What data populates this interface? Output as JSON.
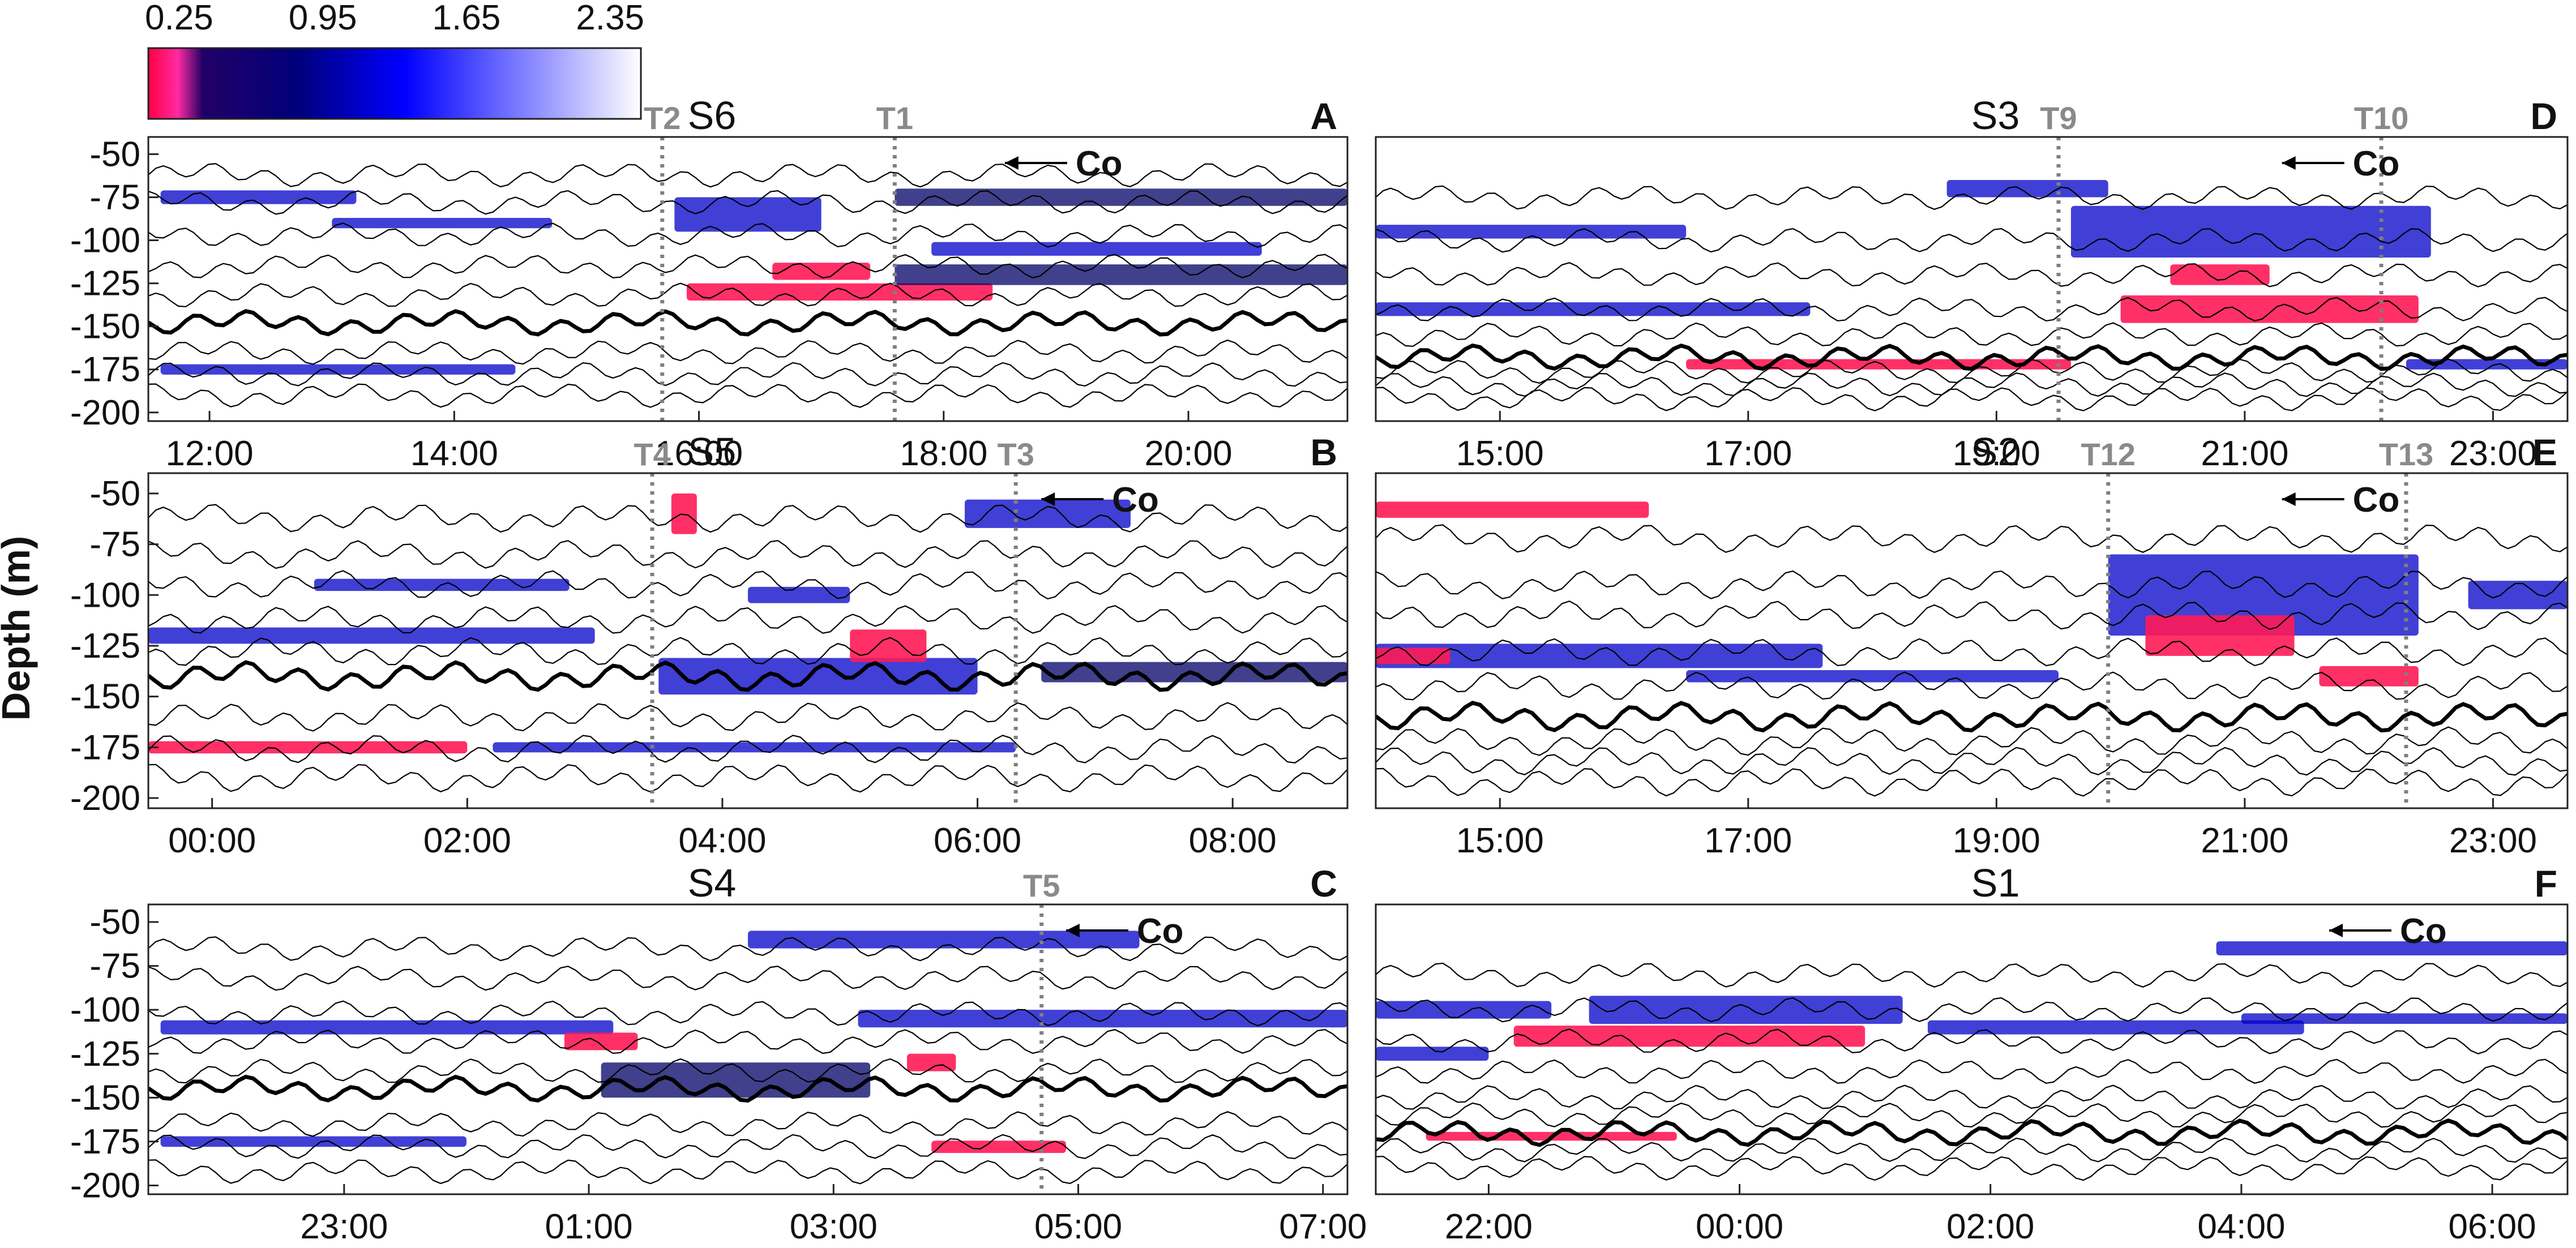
{
  "colorbar": {
    "ticks": [
      "0.25",
      "0.95",
      "1.65",
      "2.35"
    ],
    "values": [
      0.25,
      0.95,
      1.65,
      2.35
    ],
    "range": [
      0.1,
      2.5
    ],
    "colors": [
      "#ff0044",
      "#ff2aa0",
      "#1a0060",
      "#00007a",
      "#0000ff",
      "#ffffff"
    ]
  },
  "y_label": "Depth (m)",
  "colors": {
    "frame": "#222222",
    "transect_line": "#7f7f7f",
    "low": "#ff1a55",
    "mid": "#0000c8",
    "dark": "#000066"
  },
  "chart_data": [
    {
      "type": "heatmap",
      "panel": "A",
      "station": "S6",
      "ylim": [
        -205,
        -40
      ],
      "yticks": [
        "-50",
        "-75",
        "-100",
        "-125",
        "-150",
        "-175",
        "-200"
      ],
      "xlim_hours": [
        11.5,
        21.3
      ],
      "xtick_hours": [
        12,
        14,
        16,
        18,
        20
      ],
      "xtick_labels": [
        "12:00",
        "14:00",
        "16:00",
        "18:00",
        "20:00"
      ],
      "transects": [
        {
          "name": "T2",
          "hour": 15.7
        },
        {
          "name": "T1",
          "hour": 17.6
        }
      ],
      "arrow_label": "Co",
      "arrow_hour": 18.5,
      "isotherm_base_depths": [
        -62,
        -78,
        -97,
        -115,
        -132,
        -148,
        -165,
        -178,
        -190
      ],
      "thick_isotherm_index": 5,
      "patches": [
        {
          "x0": 11.6,
          "x1": 13.2,
          "y": -75,
          "h": 8,
          "v": 1.0
        },
        {
          "x0": 13.0,
          "x1": 14.8,
          "y": -90,
          "h": 6,
          "v": 1.1
        },
        {
          "x0": 15.8,
          "x1": 17.0,
          "y": -85,
          "h": 20,
          "v": 1.0
        },
        {
          "x0": 15.9,
          "x1": 18.4,
          "y": -130,
          "h": 10,
          "v": 0.3
        },
        {
          "x0": 17.6,
          "x1": 21.3,
          "y": -75,
          "h": 10,
          "v": 0.9
        },
        {
          "x0": 17.6,
          "x1": 21.3,
          "y": -120,
          "h": 12,
          "v": 0.8
        },
        {
          "x0": 11.6,
          "x1": 14.5,
          "y": -175,
          "h": 6,
          "v": 1.2
        },
        {
          "x0": 17.9,
          "x1": 20.6,
          "y": -105,
          "h": 8,
          "v": 1.0
        },
        {
          "x0": 16.6,
          "x1": 17.4,
          "y": -118,
          "h": 10,
          "v": 0.28
        }
      ]
    },
    {
      "type": "heatmap",
      "panel": "B",
      "station": "S5",
      "ylim": [
        -205,
        -40
      ],
      "yticks": [
        "-50",
        "-75",
        "-100",
        "-125",
        "-150",
        "-175",
        "-200"
      ],
      "xlim_hours": [
        -0.5,
        8.9
      ],
      "xtick_hours": [
        0,
        2,
        4,
        6,
        8
      ],
      "xtick_labels": [
        "00:00",
        "02:00",
        "04:00",
        "06:00",
        "08:00"
      ],
      "transects": [
        {
          "name": "T4",
          "hour": 3.45
        },
        {
          "name": "T3",
          "hour": 6.3
        }
      ],
      "arrow_label": "Co",
      "arrow_hour": 6.5,
      "isotherm_base_depths": [
        -62,
        -80,
        -95,
        -112,
        -128,
        -140,
        -160,
        -176,
        -190
      ],
      "thick_isotherm_index": 5,
      "patches": [
        {
          "x0": -0.5,
          "x1": 3.0,
          "y": -120,
          "h": 8,
          "v": 1.1
        },
        {
          "x0": -0.5,
          "x1": 2.0,
          "y": -175,
          "h": 6,
          "v": 0.3
        },
        {
          "x0": 3.5,
          "x1": 6.0,
          "y": -140,
          "h": 18,
          "v": 1.0
        },
        {
          "x0": 5.0,
          "x1": 5.6,
          "y": -125,
          "h": 16,
          "v": 0.3
        },
        {
          "x0": 3.6,
          "x1": 3.8,
          "y": -60,
          "h": 20,
          "v": 0.35
        },
        {
          "x0": 5.9,
          "x1": 7.2,
          "y": -60,
          "h": 14,
          "v": 1.0
        },
        {
          "x0": 6.5,
          "x1": 8.9,
          "y": -138,
          "h": 10,
          "v": 0.9
        },
        {
          "x0": 2.2,
          "x1": 6.3,
          "y": -175,
          "h": 5,
          "v": 1.2
        },
        {
          "x0": 0.8,
          "x1": 2.8,
          "y": -95,
          "h": 6,
          "v": 1.1
        },
        {
          "x0": 4.2,
          "x1": 5.0,
          "y": -100,
          "h": 8,
          "v": 1.0
        }
      ]
    },
    {
      "type": "heatmap",
      "panel": "C",
      "station": "S4",
      "ylim": [
        -205,
        -40
      ],
      "yticks": [
        "-50",
        "-75",
        "-100",
        "-125",
        "-150",
        "-175",
        "-200"
      ],
      "xlim_hours": [
        21.4,
        31.2
      ],
      "xtick_hours": [
        23,
        25,
        27,
        29,
        31
      ],
      "xtick_labels": [
        "23:00",
        "01:00",
        "03:00",
        "05:00",
        "07:00"
      ],
      "transects": [
        {
          "name": "T5",
          "hour": 28.7
        }
      ],
      "arrow_label": "Co",
      "arrow_hour": 28.9,
      "isotherm_base_depths": [
        -65,
        -82,
        -102,
        -118,
        -135,
        -145,
        -165,
        -178,
        -192
      ],
      "thick_isotherm_index": 5,
      "patches": [
        {
          "x0": 21.5,
          "x1": 25.2,
          "y": -110,
          "h": 8,
          "v": 1.0
        },
        {
          "x0": 25.1,
          "x1": 27.3,
          "y": -140,
          "h": 20,
          "v": 0.9
        },
        {
          "x0": 24.8,
          "x1": 25.4,
          "y": -118,
          "h": 10,
          "v": 0.3
        },
        {
          "x0": 27.8,
          "x1": 28.9,
          "y": -178,
          "h": 7,
          "v": 0.28
        },
        {
          "x0": 27.2,
          "x1": 31.2,
          "y": -105,
          "h": 10,
          "v": 1.0
        },
        {
          "x0": 26.3,
          "x1": 29.5,
          "y": -60,
          "h": 10,
          "v": 1.0
        },
        {
          "x0": 21.5,
          "x1": 24.0,
          "y": -175,
          "h": 6,
          "v": 1.2
        },
        {
          "x0": 27.6,
          "x1": 28.0,
          "y": -130,
          "h": 10,
          "v": 0.3
        }
      ]
    },
    {
      "type": "heatmap",
      "panel": "D",
      "station": "S3",
      "ylim": [
        -205,
        -40
      ],
      "yticks": [],
      "xlim_hours": [
        14.0,
        23.6
      ],
      "xtick_hours": [
        15,
        17,
        19,
        21,
        23
      ],
      "xtick_labels": [
        "15:00",
        "17:00",
        "19:00",
        "21:00",
        "23:00"
      ],
      "transects": [
        {
          "name": "T9",
          "hour": 19.5
        },
        {
          "name": "T10",
          "hour": 22.1
        }
      ],
      "arrow_label": "Co",
      "arrow_hour": 21.3,
      "isotherm_base_depths": [
        -75,
        -100,
        -120,
        -140,
        -155,
        -168,
        -176,
        -184,
        -192
      ],
      "thick_isotherm_index": 5,
      "patches": [
        {
          "x0": 14.0,
          "x1": 16.5,
          "y": -95,
          "h": 8,
          "v": 1.0
        },
        {
          "x0": 14.0,
          "x1": 17.5,
          "y": -140,
          "h": 8,
          "v": 1.1
        },
        {
          "x0": 16.5,
          "x1": 19.6,
          "y": -172,
          "h": 6,
          "v": 0.3
        },
        {
          "x0": 19.6,
          "x1": 22.5,
          "y": -95,
          "h": 30,
          "v": 1.0
        },
        {
          "x0": 20.0,
          "x1": 22.4,
          "y": -140,
          "h": 16,
          "v": 0.35
        },
        {
          "x0": 20.4,
          "x1": 21.2,
          "y": -120,
          "h": 12,
          "v": 0.3
        },
        {
          "x0": 22.3,
          "x1": 23.6,
          "y": -172,
          "h": 6,
          "v": 1.1
        },
        {
          "x0": 18.6,
          "x1": 19.9,
          "y": -70,
          "h": 10,
          "v": 1.1
        }
      ]
    },
    {
      "type": "heatmap",
      "panel": "E",
      "station": "S2",
      "ylim": [
        -205,
        -40
      ],
      "yticks": [],
      "xlim_hours": [
        14.0,
        23.6
      ],
      "xtick_hours": [
        15,
        17,
        19,
        21,
        23
      ],
      "xtick_labels": [
        "15:00",
        "17:00",
        "19:00",
        "21:00",
        "23:00"
      ],
      "transects": [
        {
          "name": "T12",
          "hour": 19.9
        },
        {
          "name": "T13",
          "hour": 22.3
        }
      ],
      "arrow_label": "Co",
      "arrow_hour": 21.3,
      "isotherm_base_depths": [
        -72,
        -95,
        -110,
        -128,
        -145,
        -160,
        -172,
        -182,
        -192
      ],
      "thick_isotherm_index": 5,
      "patches": [
        {
          "x0": 14.0,
          "x1": 16.2,
          "y": -58,
          "h": 8,
          "v": 0.4
        },
        {
          "x0": 14.0,
          "x1": 17.6,
          "y": -130,
          "h": 12,
          "v": 1.0
        },
        {
          "x0": 14.0,
          "x1": 14.6,
          "y": -130,
          "h": 8,
          "v": 0.3
        },
        {
          "x0": 19.9,
          "x1": 22.4,
          "y": -100,
          "h": 40,
          "v": 1.0
        },
        {
          "x0": 20.2,
          "x1": 21.4,
          "y": -120,
          "h": 20,
          "v": 0.32
        },
        {
          "x0": 21.6,
          "x1": 22.4,
          "y": -140,
          "h": 10,
          "v": 0.3
        },
        {
          "x0": 16.5,
          "x1": 19.5,
          "y": -140,
          "h": 6,
          "v": 1.1
        },
        {
          "x0": 22.8,
          "x1": 23.6,
          "y": -100,
          "h": 14,
          "v": 1.0
        }
      ]
    },
    {
      "type": "heatmap",
      "panel": "F",
      "station": "S1",
      "ylim": [
        -205,
        -40
      ],
      "yticks": [],
      "xlim_hours": [
        21.1,
        30.6
      ],
      "xtick_hours": [
        22,
        24,
        26,
        28,
        30
      ],
      "xtick_labels": [
        "22:00",
        "00:00",
        "02:00",
        "04:00",
        "06:00"
      ],
      "transects": [],
      "arrow_label": "Co",
      "arrow_hour": 28.7,
      "isotherm_base_depths": [
        -80,
        -100,
        -118,
        -135,
        -150,
        -160,
        -170,
        -180,
        -190
      ],
      "thick_isotherm_index": 6,
      "patches": [
        {
          "x0": 21.1,
          "x1": 22.5,
          "y": -100,
          "h": 10,
          "v": 1.0
        },
        {
          "x0": 22.2,
          "x1": 25.0,
          "y": -115,
          "h": 12,
          "v": 0.3
        },
        {
          "x0": 22.8,
          "x1": 25.3,
          "y": -100,
          "h": 16,
          "v": 1.0
        },
        {
          "x0": 21.1,
          "x1": 22.0,
          "y": -125,
          "h": 8,
          "v": 1.0
        },
        {
          "x0": 25.5,
          "x1": 28.5,
          "y": -110,
          "h": 8,
          "v": 1.1
        },
        {
          "x0": 27.8,
          "x1": 30.6,
          "y": -65,
          "h": 8,
          "v": 1.1
        },
        {
          "x0": 21.5,
          "x1": 23.5,
          "y": -172,
          "h": 5,
          "v": 0.35
        },
        {
          "x0": 28.0,
          "x1": 30.6,
          "y": -105,
          "h": 6,
          "v": 1.1
        }
      ]
    }
  ]
}
